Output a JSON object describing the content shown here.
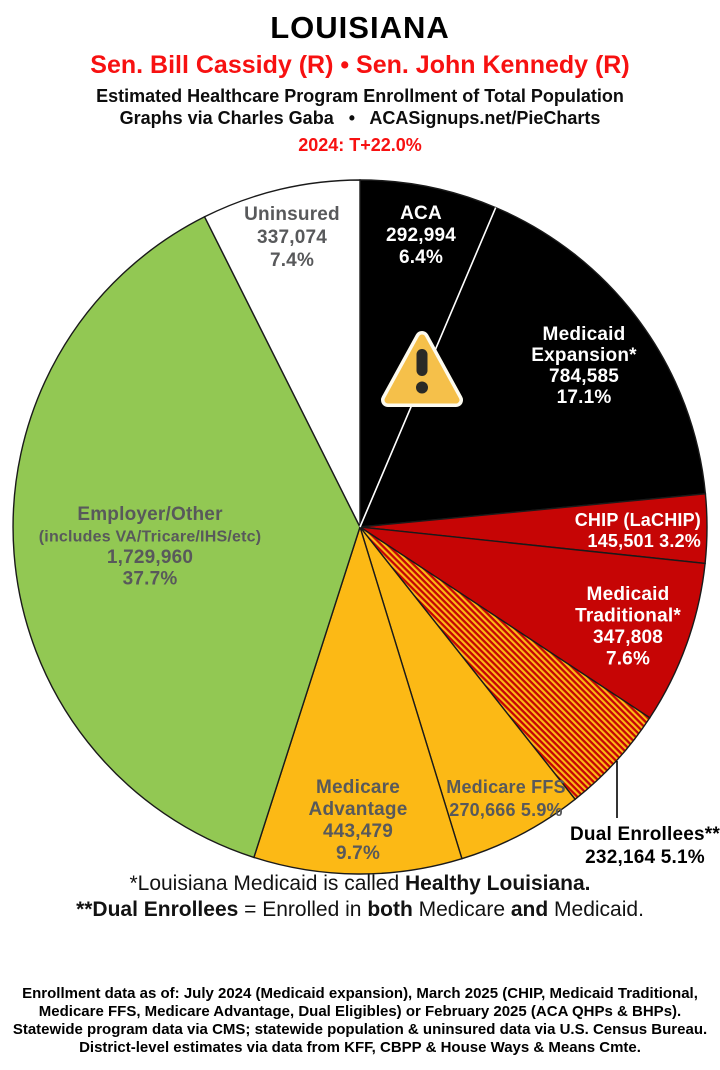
{
  "header": {
    "title": "LOUISIANA",
    "senators": "Sen. Bill Cassidy (R) • Sen. John Kennedy (R)",
    "subtitle": "Estimated Healthcare Program Enrollment of Total Population",
    "credit": "Graphs via Charles Gaba   •   ACASignups.net/PieCharts",
    "partisan_lean": "2024: T+22.0%",
    "accent_color": "#f71111"
  },
  "chart_data": {
    "type": "pie",
    "title": "Estimated Healthcare Program Enrollment of Total Population",
    "start_angle_deg": 0,
    "direction": "clockwise",
    "divider_after_slice": "aca",
    "center_icon": "warning-icon",
    "slices": [
      {
        "id": "aca",
        "label": "ACA",
        "value": 292994,
        "pct": 6.4,
        "color": "#000000",
        "text_color": "#ffffff",
        "lines": [
          "ACA",
          "292,994",
          "6.4%"
        ]
      },
      {
        "id": "medicaid-expansion",
        "label": "Medicaid Expansion*",
        "value": 784585,
        "pct": 17.1,
        "color": "#000000",
        "text_color": "#ffffff",
        "lines": [
          "Medicaid",
          "Expansion*",
          "784,585",
          "17.1%"
        ]
      },
      {
        "id": "chip",
        "label": "CHIP (LaCHIP)",
        "value": 145501,
        "pct": 3.2,
        "color": "#c60505",
        "text_color": "#ffffff",
        "lines": [
          "CHIP (LaCHIP)",
          "145,501 3.2%"
        ]
      },
      {
        "id": "medicaid-traditional",
        "label": "Medicaid Traditional*",
        "value": 347808,
        "pct": 7.6,
        "color": "#c60505",
        "text_color": "#ffffff",
        "lines": [
          "Medicaid",
          "Traditional*",
          "347,808",
          "7.6%"
        ]
      },
      {
        "id": "dual-enrollees",
        "label": "Dual Enrollees**",
        "value": 232164,
        "pct": 5.1,
        "color": "hatch",
        "hatch_colors": [
          "#c60505",
          "#fcb915"
        ],
        "text_color": "#000000",
        "label_outside": true,
        "lines": [
          "Dual Enrollees**",
          "232,164 5.1%"
        ]
      },
      {
        "id": "medicare-ffs",
        "label": "Medicare FFS",
        "value": 270666,
        "pct": 5.9,
        "color": "#fcb915",
        "text_color": "#58595b",
        "lines": [
          "Medicare FFS",
          "270,666 5.9%"
        ]
      },
      {
        "id": "medicare-advantage",
        "label": "Medicare Advantage",
        "value": 443479,
        "pct": 9.7,
        "color": "#fcb915",
        "text_color": "#58595b",
        "lines": [
          "Medicare",
          "Advantage",
          "443,479",
          "9.7%"
        ]
      },
      {
        "id": "employer-other",
        "label": "Employer/Other (includes VA/Tricare/IHS/etc)",
        "value": 1729960,
        "pct": 37.7,
        "color": "#92c853",
        "text_color": "#58595b",
        "lines": [
          "Employer/Other",
          "(includes VA/Tricare/IHS/etc)",
          "1,729,960",
          "37.7%"
        ]
      },
      {
        "id": "uninsured",
        "label": "Uninsured",
        "value": 337074,
        "pct": 7.4,
        "color": "#ffffff",
        "text_color": "#58595b",
        "lines": [
          "Uninsured",
          "337,074",
          "7.4%"
        ]
      }
    ]
  },
  "notes": {
    "line1": [
      {
        "t": "*Louisiana Medicaid is called ",
        "b": false
      },
      {
        "t": "Healthy Louisiana.",
        "b": true
      }
    ],
    "line2": [
      {
        "t": "**Dual Enrollees",
        "b": true
      },
      {
        "t": " = Enrolled in ",
        "b": false
      },
      {
        "t": "both",
        "b": true
      },
      {
        "t": " Medicare ",
        "b": false
      },
      {
        "t": "and",
        "b": true
      },
      {
        "t": " Medicaid.",
        "b": false
      }
    ]
  },
  "footer": {
    "lines": [
      "Enrollment data as of: July 2024 (Medicaid expansion), March 2025 (CHIP, Medicaid Traditional,",
      "Medicare FFS, Medicare Advantage, Dual Eligibles) or February 2025 (ACA QHPs & BHPs).",
      "Statewide program data via CMS; statewide population & uninsured data via U.S. Census Bureau.",
      "District-level estimates via data from KFF, CBPP & House Ways & Means Cmte."
    ]
  }
}
